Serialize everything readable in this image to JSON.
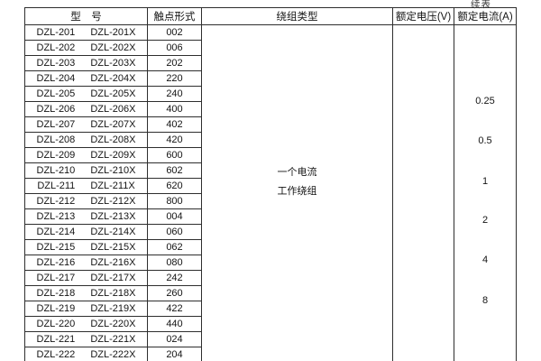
{
  "page": {
    "continued_label": "续表"
  },
  "table": {
    "headers": [
      "型　号",
      "触点形式",
      "绕组类型",
      "额定电压(V)",
      "额定电流(A)"
    ],
    "winding_type_lines": [
      "一个电流",
      "工作绕组"
    ],
    "current_values": [
      "0.25",
      "0.5",
      "1",
      "2",
      "4",
      "8"
    ],
    "rows": [
      {
        "model": "DZL-201",
        "model_x": "DZL-201X",
        "contact_form": "002"
      },
      {
        "model": "DZL-202",
        "model_x": "DZL-202X",
        "contact_form": "006"
      },
      {
        "model": "DZL-203",
        "model_x": "DZL-203X",
        "contact_form": "202"
      },
      {
        "model": "DZL-204",
        "model_x": "DZL-204X",
        "contact_form": "220"
      },
      {
        "model": "DZL-205",
        "model_x": "DZL-205X",
        "contact_form": "240"
      },
      {
        "model": "DZL-206",
        "model_x": "DZL-206X",
        "contact_form": "400"
      },
      {
        "model": "DZL-207",
        "model_x": "DZL-207X",
        "contact_form": "402"
      },
      {
        "model": "DZL-208",
        "model_x": "DZL-208X",
        "contact_form": "420"
      },
      {
        "model": "DZL-209",
        "model_x": "DZL-209X",
        "contact_form": "600"
      },
      {
        "model": "DZL-210",
        "model_x": "DZL-210X",
        "contact_form": "602"
      },
      {
        "model": "DZL-211",
        "model_x": "DZL-211X",
        "contact_form": "620"
      },
      {
        "model": "DZL-212",
        "model_x": "DZL-212X",
        "contact_form": "800"
      },
      {
        "model": "DZL-213",
        "model_x": "DZL-213X",
        "contact_form": "004"
      },
      {
        "model": "DZL-214",
        "model_x": "DZL-214X",
        "contact_form": "060"
      },
      {
        "model": "DZL-215",
        "model_x": "DZL-215X",
        "contact_form": "062"
      },
      {
        "model": "DZL-216",
        "model_x": "DZL-216X",
        "contact_form": "080"
      },
      {
        "model": "DZL-217",
        "model_x": "DZL-217X",
        "contact_form": "242"
      },
      {
        "model": "DZL-218",
        "model_x": "DZL-218X",
        "contact_form": "260"
      },
      {
        "model": "DZL-219",
        "model_x": "DZL-219X",
        "contact_form": "422"
      },
      {
        "model": "DZL-220",
        "model_x": "DZL-220X",
        "contact_form": "440"
      },
      {
        "model": "DZL-221",
        "model_x": "DZL-221X",
        "contact_form": "024"
      },
      {
        "model": "DZL-222",
        "model_x": "DZL-222X",
        "contact_form": "204"
      }
    ]
  }
}
